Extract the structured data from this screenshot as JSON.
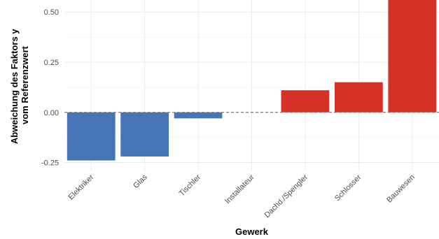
{
  "chart_data": {
    "type": "bar",
    "categories": [
      "Elektriker",
      "Glas",
      "Tischler",
      "Installateur",
      "Dachd./Spengler",
      "Schlosser",
      "Bauwesen"
    ],
    "values": [
      -0.24,
      -0.22,
      -0.03,
      0.0,
      0.11,
      0.15,
      0.56
    ],
    "xlabel": "Gewerk",
    "ylabel_lines": [
      "Abweichung des Faktors y",
      "vom Referenzwert"
    ],
    "yticks": [
      -0.25,
      0.0,
      0.25,
      0.5
    ],
    "ytick_labels": [
      "-0.25",
      "0.00",
      "0.25",
      "0.50"
    ],
    "ylim": [
      -0.29,
      0.56
    ],
    "reference_line": 0.0,
    "grid": true,
    "legend": "none",
    "colors": {
      "negative": "#4575b4",
      "positive": "#d73027"
    }
  }
}
